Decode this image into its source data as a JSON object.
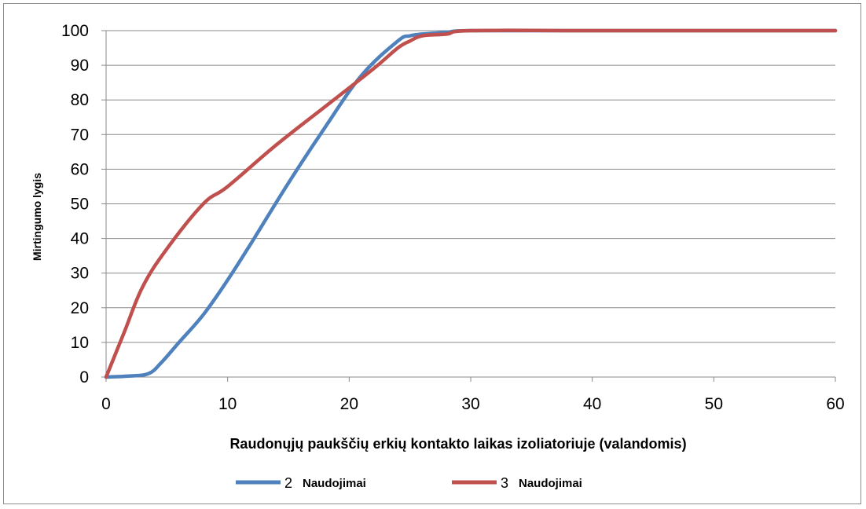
{
  "chart_data": {
    "type": "line",
    "title": "",
    "xlabel": "Raudonųjų paukščių erkių kontakto laikas izoliatoriuje (valandomis)",
    "ylabel": "Mirtingumo lygis",
    "xlim": [
      0,
      60
    ],
    "ylim": [
      0,
      100
    ],
    "xticks": [
      "0",
      "10",
      "20",
      "30",
      "40",
      "50",
      "60"
    ],
    "yticks": [
      "0",
      "10",
      "20",
      "30",
      "40",
      "50",
      "60",
      "70",
      "80",
      "90",
      "100"
    ],
    "grid": "horizontal",
    "legend_position": "bottom",
    "series": [
      {
        "name_number": "2",
        "name_text": "Naudojimai",
        "color": "#4f81bd",
        "x": [
          0,
          2,
          3.5,
          4.5,
          6,
          8,
          10,
          12,
          15,
          18,
          21,
          24,
          25,
          26,
          28,
          30,
          40,
          50,
          60
        ],
        "y": [
          0,
          0.3,
          1,
          4,
          10,
          18,
          28,
          39,
          56,
          72,
          87,
          97,
          98.5,
          99,
          99.5,
          100,
          100,
          100,
          100
        ]
      },
      {
        "name_number": "3",
        "name_text": "Naudojimai",
        "color": "#c0504d",
        "x": [
          0,
          1.5,
          3,
          5,
          8,
          10,
          14,
          18,
          22,
          24,
          25,
          26,
          28,
          30,
          40,
          50,
          60
        ],
        "y": [
          0,
          13,
          26,
          37,
          50,
          55,
          67,
          78,
          89,
          95,
          97,
          98.5,
          99,
          100,
          100,
          100,
          100
        ]
      }
    ]
  }
}
